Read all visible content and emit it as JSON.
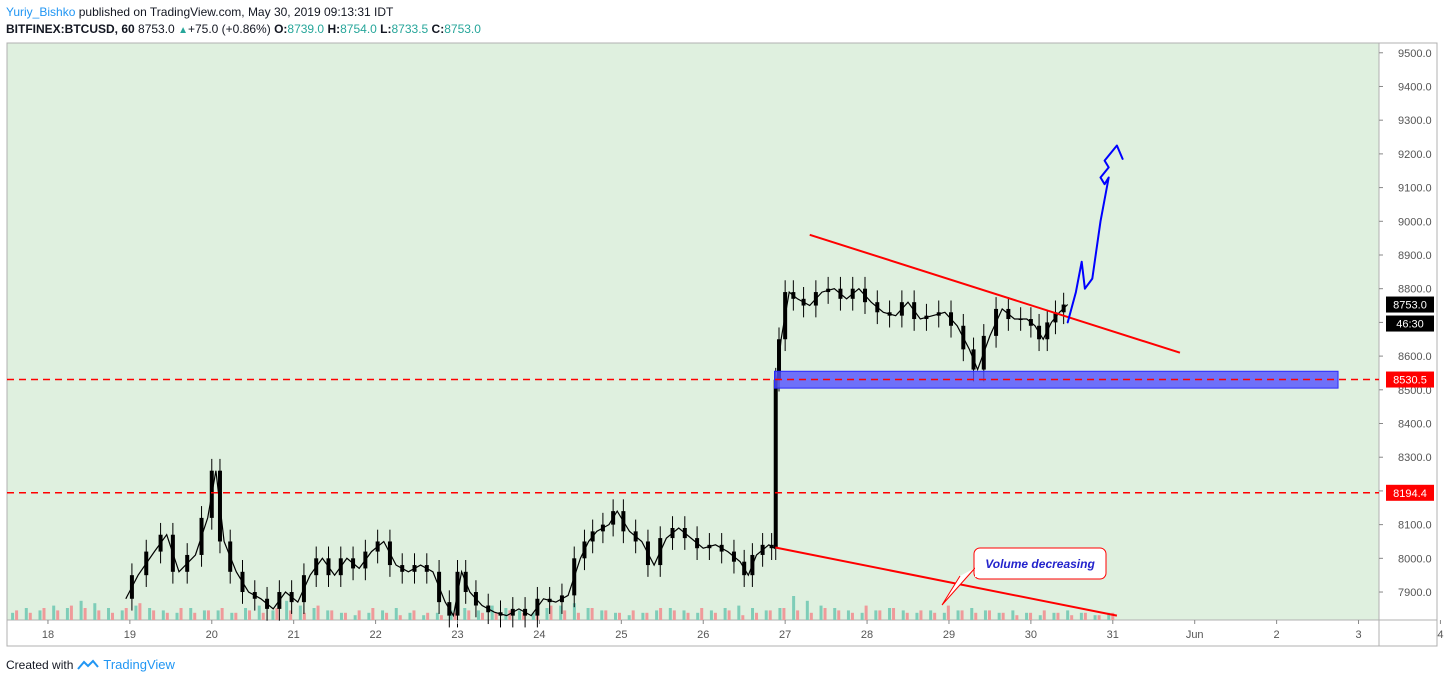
{
  "header": {
    "author": "Yuriy_Bishko",
    "published_text": "published on TradingView.com, May 30, 2019 09:13:31 IDT",
    "symbol": "BITFINEX:BTCUSD, 60",
    "last": "8753.0",
    "change": "+75.0 (+0.86%)",
    "o_label": "O:",
    "o_value": "8739.0",
    "h_label": "H:",
    "h_value": "8754.0",
    "l_label": "L:",
    "l_value": "8733.5",
    "c_label": "C:",
    "c_value": "8753.0"
  },
  "footer": {
    "created_with": "Created with",
    "brand": "TradingView"
  },
  "colors": {
    "plot_bg": "#dff0df",
    "candle": "#000000",
    "trend": "#ff0000",
    "zone": "#5151ff",
    "arrow": "#0000ff",
    "vol_up": "#7ecdb8",
    "vol_down": "#ef9a9a",
    "axis_text": "#555555",
    "label_black": "#000000",
    "label_red": "#ff0000"
  },
  "chart_data": {
    "type": "candlestick",
    "symbol": "BITFINEX:BTCUSD",
    "interval": "60",
    "x_ticks": [
      "18",
      "19",
      "20",
      "21",
      "22",
      "23",
      "24",
      "25",
      "26",
      "27",
      "28",
      "29",
      "30",
      "31",
      "Jun",
      "2",
      "3",
      "4"
    ],
    "y_ticks": [
      "9500.0",
      "9400.0",
      "9300.0",
      "9200.0",
      "9100.0",
      "9000.0",
      "8900.0",
      "8800.0",
      "8700.0",
      "8600.0",
      "8500.0",
      "8400.0",
      "8300.0",
      "8200.0",
      "8100.0",
      "8000.0",
      "7900.0"
    ],
    "ylim": [
      7817,
      9529
    ],
    "xlim": [
      17.5,
      34.25
    ],
    "price_path": [
      [
        18.95,
        7880
      ],
      [
        19.1,
        7950
      ],
      [
        19.3,
        8020
      ],
      [
        19.45,
        8070
      ],
      [
        19.6,
        7960
      ],
      [
        19.8,
        8010
      ],
      [
        19.95,
        8120
      ],
      [
        20.05,
        8260
      ],
      [
        20.15,
        8050
      ],
      [
        20.3,
        7960
      ],
      [
        20.45,
        7900
      ],
      [
        20.6,
        7880
      ],
      [
        20.75,
        7850
      ],
      [
        20.9,
        7900
      ],
      [
        21.05,
        7870
      ],
      [
        21.2,
        7950
      ],
      [
        21.35,
        8000
      ],
      [
        21.5,
        7950
      ],
      [
        21.65,
        8000
      ],
      [
        21.8,
        7970
      ],
      [
        21.95,
        8020
      ],
      [
        22.1,
        8050
      ],
      [
        22.25,
        7980
      ],
      [
        22.4,
        7960
      ],
      [
        22.55,
        7980
      ],
      [
        22.7,
        7960
      ],
      [
        22.85,
        7870
      ],
      [
        22.95,
        7830
      ],
      [
        23.05,
        7960
      ],
      [
        23.15,
        7900
      ],
      [
        23.3,
        7860
      ],
      [
        23.45,
        7840
      ],
      [
        23.6,
        7830
      ],
      [
        23.75,
        7850
      ],
      [
        23.9,
        7830
      ],
      [
        24.05,
        7880
      ],
      [
        24.2,
        7870
      ],
      [
        24.35,
        7890
      ],
      [
        24.5,
        8000
      ],
      [
        24.6,
        8050
      ],
      [
        24.7,
        8080
      ],
      [
        24.85,
        8100
      ],
      [
        24.95,
        8140
      ],
      [
        25.1,
        8080
      ],
      [
        25.25,
        8050
      ],
      [
        25.4,
        7980
      ],
      [
        25.55,
        8060
      ],
      [
        25.7,
        8090
      ],
      [
        25.85,
        8060
      ],
      [
        26.0,
        8030
      ],
      [
        26.15,
        8040
      ],
      [
        26.3,
        8020
      ],
      [
        26.45,
        7990
      ],
      [
        26.55,
        7950
      ],
      [
        26.65,
        8010
      ],
      [
        26.8,
        8040
      ],
      [
        26.87,
        8030
      ],
      [
        26.9,
        8530
      ],
      [
        26.95,
        8650
      ],
      [
        27.05,
        8790
      ],
      [
        27.15,
        8770
      ],
      [
        27.3,
        8750
      ],
      [
        27.45,
        8790
      ],
      [
        27.6,
        8800
      ],
      [
        27.75,
        8770
      ],
      [
        27.9,
        8800
      ],
      [
        28.05,
        8760
      ],
      [
        28.2,
        8730
      ],
      [
        28.35,
        8720
      ],
      [
        28.5,
        8760
      ],
      [
        28.65,
        8710
      ],
      [
        28.8,
        8720
      ],
      [
        28.95,
        8730
      ],
      [
        29.1,
        8690
      ],
      [
        29.25,
        8620
      ],
      [
        29.35,
        8560
      ],
      [
        29.5,
        8660
      ],
      [
        29.65,
        8740
      ],
      [
        29.8,
        8710
      ],
      [
        29.95,
        8710
      ],
      [
        30.05,
        8690
      ],
      [
        30.15,
        8650
      ],
      [
        30.25,
        8700
      ],
      [
        30.35,
        8730
      ],
      [
        30.45,
        8753
      ]
    ],
    "volume_up": [
      0.3,
      0.5,
      0.4,
      0.6,
      0.5,
      0.8,
      0.7,
      0.5,
      0.4,
      0.6,
      0.5,
      0.4,
      0.3,
      0.5,
      0.4,
      0.4,
      0.3,
      0.5,
      0.6,
      0.4,
      0.8,
      0.6,
      0.5,
      0.4,
      0.3,
      0.2,
      0.3,
      0.4,
      0.5,
      0.3,
      0.2,
      0.3,
      0.4,
      0.5,
      0.4,
      0.6,
      0.5,
      0.4,
      0.3,
      0.5,
      0.6,
      0.7,
      0.5,
      0.4,
      0.3,
      0.2,
      0.3,
      0.4,
      0.5,
      0.4,
      0.3,
      0.4,
      0.5,
      0.6,
      0.5,
      0.4,
      0.5,
      1.0,
      0.8,
      0.6,
      0.5,
      0.4,
      0.3,
      0.4,
      0.5,
      0.4,
      0.3,
      0.4,
      0.3,
      0.4,
      0.5,
      0.4,
      0.3,
      0.4,
      0.3,
      0.2,
      0.3,
      0.4,
      0.3,
      0.2,
      0.3
    ],
    "volume_down": [
      0.4,
      0.3,
      0.5,
      0.4,
      0.6,
      0.5,
      0.4,
      0.3,
      0.5,
      0.7,
      0.4,
      0.3,
      0.5,
      0.3,
      0.4,
      0.5,
      0.3,
      0.4,
      0.3,
      0.5,
      0.4,
      0.3,
      0.6,
      0.4,
      0.3,
      0.4,
      0.5,
      0.3,
      0.2,
      0.4,
      0.3,
      0.2,
      0.3,
      0.4,
      0.3,
      0.3,
      0.4,
      0.3,
      0.2,
      0.6,
      0.4,
      0.3,
      0.5,
      0.4,
      0.3,
      0.4,
      0.3,
      0.5,
      0.4,
      0.3,
      0.5,
      0.3,
      0.4,
      0.2,
      0.3,
      0.4,
      0.5,
      0.4,
      0.3,
      0.5,
      0.4,
      0.3,
      0.6,
      0.4,
      0.5,
      0.3,
      0.4,
      0.3,
      0.6,
      0.4,
      0.3,
      0.4,
      0.3,
      0.2,
      0.3,
      0.4,
      0.3,
      0.2,
      0.3,
      0.2,
      0.3
    ],
    "annotations": {
      "resistance_trendline": [
        [
          27.3,
          8960
        ],
        [
          29.9,
          8755
        ],
        [
          31.82,
          8610
        ]
      ],
      "volume_trendline": [
        [
          26.88,
          8032
        ],
        [
          31.05,
          7830
        ]
      ],
      "support_zone": [
        8555,
        8505
      ],
      "support_zone_x": [
        26.87,
        33.75
      ],
      "horizontal_levels": [
        8530.5,
        8194.4
      ],
      "projection_arrow": [
        [
          30.45,
          8700
        ],
        [
          30.55,
          8790
        ],
        [
          30.62,
          8880
        ],
        [
          30.66,
          8800
        ],
        [
          30.75,
          8830
        ],
        [
          30.85,
          9000
        ],
        [
          30.95,
          9130
        ],
        [
          30.9,
          9110
        ],
        [
          30.85,
          9130
        ],
        [
          30.95,
          9160
        ],
        [
          30.9,
          9180
        ],
        [
          31.05,
          9225
        ],
        [
          31.12,
          9185
        ]
      ],
      "price_labels": [
        {
          "text": "8753.0",
          "style": "black"
        },
        {
          "text": "46:30",
          "style": "black"
        },
        {
          "text": "8530.5",
          "style": "red"
        },
        {
          "text": "8194.4",
          "style": "red"
        }
      ],
      "callout": {
        "text": "Volume decreasing"
      }
    }
  }
}
